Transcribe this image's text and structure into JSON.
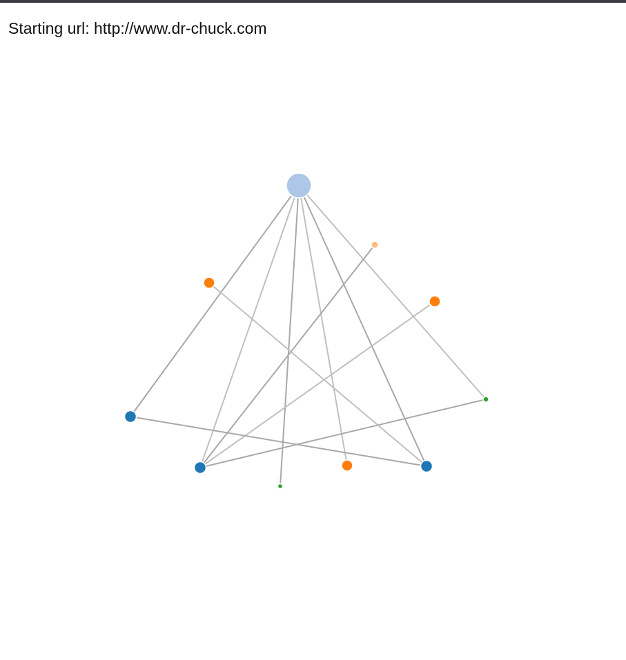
{
  "page": {
    "heading": "Starting url: http://www.dr-chuck.com"
  },
  "graph": {
    "node_colors": {
      "hub": "#aec7e8",
      "blue": "#1f77b4",
      "orange": "#ff7f0e",
      "light-orange": "#ffbb78",
      "green": "#2ca02c"
    },
    "edge_colors": [
      "#a8a8a8",
      "#c0c0c0"
    ],
    "nodes": [
      {
        "id": "hub",
        "group": "hub"
      },
      {
        "id": "n1",
        "group": "orange"
      },
      {
        "id": "n2",
        "group": "light-orange"
      },
      {
        "id": "n3",
        "group": "orange"
      },
      {
        "id": "n4",
        "group": "blue"
      },
      {
        "id": "n5",
        "group": "green"
      },
      {
        "id": "n6",
        "group": "blue"
      },
      {
        "id": "n7",
        "group": "orange"
      },
      {
        "id": "n8",
        "group": "blue"
      },
      {
        "id": "n9",
        "group": "green"
      }
    ],
    "links": [
      {
        "source": "hub",
        "target": "n4"
      },
      {
        "source": "hub",
        "target": "n6"
      },
      {
        "source": "hub",
        "target": "n9"
      },
      {
        "source": "hub",
        "target": "n7"
      },
      {
        "source": "hub",
        "target": "n8"
      },
      {
        "source": "hub",
        "target": "n5"
      },
      {
        "source": "n2",
        "target": "n6"
      },
      {
        "source": "n3",
        "target": "n6"
      },
      {
        "source": "n5",
        "target": "n6"
      },
      {
        "source": "n1",
        "target": "n8"
      },
      {
        "source": "n4",
        "target": "n8"
      }
    ]
  }
}
